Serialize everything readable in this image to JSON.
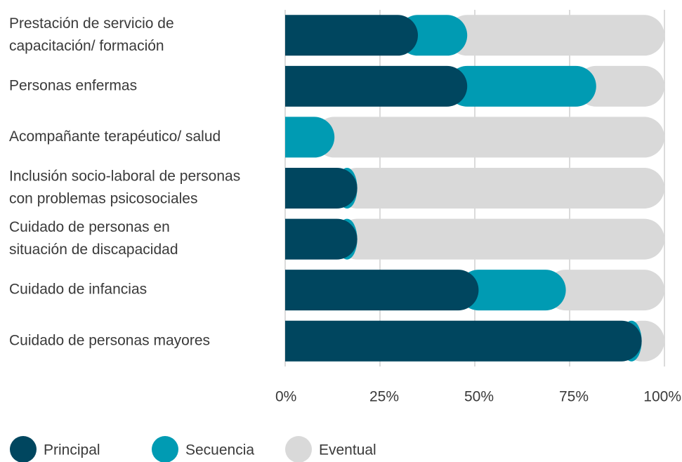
{
  "chart_data": {
    "type": "stacked_barh",
    "categories": [
      [
        "Prestación de servicio de",
        "capacitación/ formación"
      ],
      [
        "Personas enfermas"
      ],
      [
        "Acompañante terapéutico/ salud"
      ],
      [
        "Inclusión socio-laboral de personas",
        "con problemas psicosociales"
      ],
      [
        "Cuidado de personas en",
        "situación de discapacidad"
      ],
      [
        "Cuidado de infancias"
      ],
      [
        "Cuidado de personas mayores"
      ]
    ],
    "series": [
      {
        "name": "Principal",
        "color": "#00465f",
        "values": [
          35,
          48,
          0,
          19,
          19,
          51,
          94
        ]
      },
      {
        "name": "Secuencia",
        "color": "#009bb3",
        "values": [
          13,
          34,
          13,
          0,
          0,
          23,
          0
        ]
      },
      {
        "name": "Eventual",
        "color": "#d9d9d9",
        "values": [
          52,
          18,
          87,
          81,
          81,
          26,
          6
        ]
      }
    ],
    "xlim": [
      0,
      100
    ],
    "xticks": [
      {
        "value": 0,
        "label": "0%"
      },
      {
        "value": 25,
        "label": "25%"
      },
      {
        "value": 50,
        "label": "50%"
      },
      {
        "value": 75,
        "label": "75%"
      },
      {
        "value": 100,
        "label": "100%"
      }
    ],
    "grid": true
  }
}
